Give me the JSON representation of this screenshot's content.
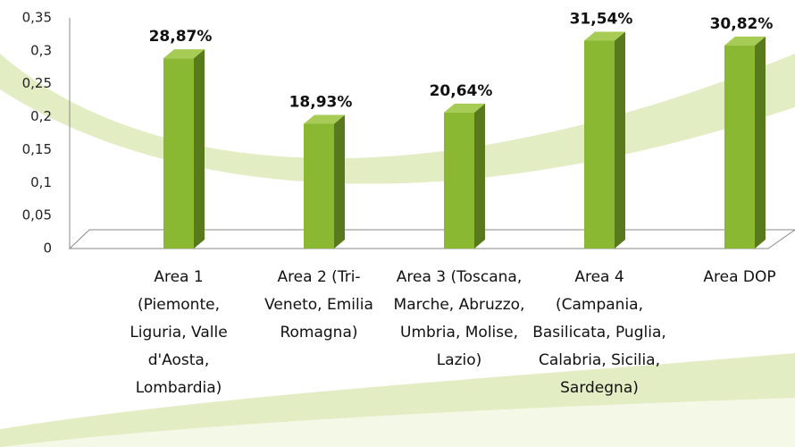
{
  "chart_data": {
    "type": "bar3d",
    "categories": [
      "Area 1 (Piemonte, Liguria, Valle d'Aosta, Lombardia)",
      "Area 2 (Tri-Veneto, Emilia Romagna)",
      "Area 3 (Toscana, Marche, Abruzzo, Umbria, Molise, Lazio)",
      "Area 4 (Campania, Basilicata, Puglia, Calabria, Sicilia, Sardegna)",
      "Area DOP"
    ],
    "values": [
      0.2887,
      0.1893,
      0.2064,
      0.3154,
      0.3082
    ],
    "value_labels": [
      "28,87%",
      "18,93%",
      "20,64%",
      "31,54%",
      "30,82%"
    ],
    "color": "#8ab833",
    "ylim": [
      0,
      0.35
    ],
    "yticks": [
      0,
      {
        "value": 0.05,
        "label": "0,05"
      },
      {
        "value": 0.1,
        "label": "0,1"
      },
      {
        "value": 0.15,
        "label": "0,15"
      },
      {
        "value": 0.2,
        "label": "0,2"
      },
      {
        "value": 0.25,
        "label": "0,25"
      },
      {
        "value": 0.3,
        "label": "0,3"
      },
      {
        "value": 0.35,
        "label": "0,35"
      }
    ],
    "grid": false
  }
}
